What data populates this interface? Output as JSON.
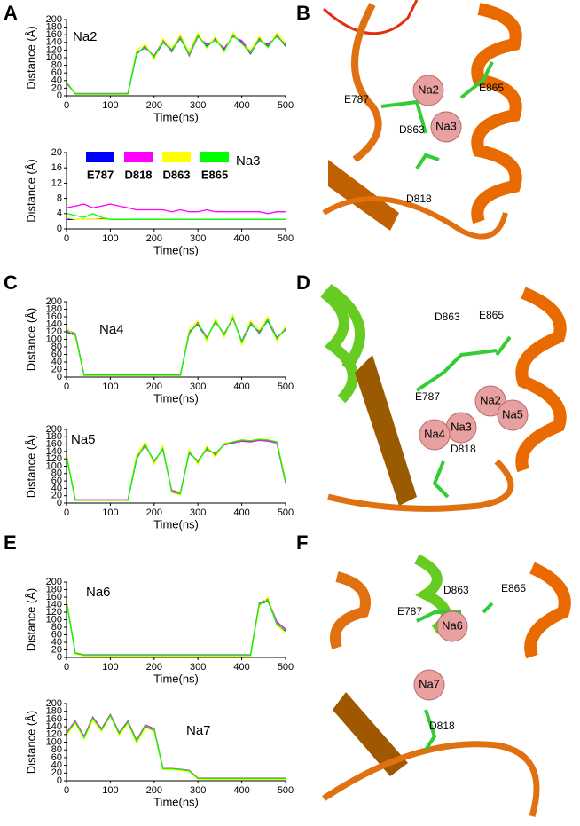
{
  "panel_labels": [
    "A",
    "B",
    "C",
    "D",
    "E",
    "F"
  ],
  "chart_data": [
    {
      "type": "line",
      "title": "Na2",
      "xlabel": "Time(ns)",
      "ylabel": "Distance (Å)",
      "x": [
        0,
        20,
        40,
        60,
        80,
        100,
        120,
        140,
        160,
        180,
        200,
        220,
        240,
        260,
        280,
        300,
        320,
        340,
        360,
        380,
        400,
        420,
        440,
        460,
        480,
        500
      ],
      "xlim": [
        0,
        500
      ],
      "xticks": [
        0,
        100,
        200,
        300,
        400,
        500
      ],
      "ylim": [
        0,
        200
      ],
      "yticks": [
        0,
        20,
        40,
        60,
        80,
        100,
        120,
        140,
        160,
        180,
        200
      ],
      "series": [
        {
          "color": "#0000ff",
          "values": [
            35,
            5,
            5,
            5,
            5,
            5,
            5,
            5,
            110,
            130,
            100,
            140,
            120,
            150,
            110,
            160,
            130,
            150,
            120,
            160,
            140,
            110,
            150,
            130,
            160,
            130
          ]
        },
        {
          "color": "#ff00ff",
          "values": [
            33,
            6,
            6,
            6,
            6,
            6,
            6,
            6,
            115,
            125,
            105,
            145,
            115,
            155,
            105,
            155,
            135,
            145,
            125,
            155,
            145,
            115,
            145,
            135,
            155,
            135
          ]
        },
        {
          "color": "#ffff00",
          "values": [
            38,
            4,
            4,
            4,
            4,
            4,
            4,
            4,
            120,
            135,
            95,
            150,
            125,
            160,
            115,
            165,
            125,
            155,
            115,
            165,
            135,
            120,
            155,
            125,
            165,
            140
          ]
        },
        {
          "color": "#00ff00",
          "values": [
            36,
            5,
            5,
            5,
            5,
            5,
            5,
            5,
            112,
            128,
            102,
            142,
            118,
            152,
            108,
            158,
            128,
            148,
            118,
            158,
            138,
            112,
            148,
            128,
            158,
            132
          ]
        }
      ]
    },
    {
      "type": "line",
      "title": "Na3",
      "xlabel": "Time(ns)",
      "ylabel": "Distance (Å)",
      "x": [
        0,
        20,
        40,
        60,
        80,
        100,
        120,
        140,
        160,
        180,
        200,
        220,
        240,
        260,
        280,
        300,
        320,
        340,
        360,
        380,
        400,
        420,
        440,
        460,
        480,
        500
      ],
      "xlim": [
        0,
        500
      ],
      "xticks": [
        0,
        100,
        200,
        300,
        400,
        500
      ],
      "ylim": [
        0,
        20
      ],
      "yticks": [
        0,
        4,
        8,
        12,
        16,
        20
      ],
      "series": [
        {
          "name": "E787",
          "color": "#0000ff",
          "values": [
            2.5,
            2.5,
            2.5,
            2.5,
            2.6,
            2.5,
            2.5,
            2.5,
            2.5,
            2.5,
            2.5,
            2.5,
            2.5,
            2.5,
            2.5,
            2.5,
            2.5,
            2.5,
            2.5,
            2.5,
            2.5,
            2.5,
            2.5,
            2.5,
            2.5,
            2.5
          ]
        },
        {
          "name": "D818",
          "color": "#ff00ff",
          "values": [
            5.5,
            6,
            6.5,
            5.5,
            6,
            6.5,
            6,
            5.5,
            5,
            5,
            5,
            5,
            4.5,
            5,
            4.5,
            4.5,
            5,
            4.5,
            4.5,
            4.5,
            4.5,
            4.5,
            4.5,
            4,
            4.5,
            4.5
          ]
        },
        {
          "name": "D863",
          "color": "#ffff00",
          "values": [
            3,
            2.5,
            2.5,
            2.5,
            2.5,
            2.5,
            2.5,
            2.5,
            2.5,
            2.5,
            2.5,
            2.5,
            2.5,
            2.5,
            2.5,
            2.5,
            2.5,
            2.5,
            2.5,
            2.5,
            2.5,
            2.5,
            2.5,
            2.5,
            2.5,
            2.5
          ]
        },
        {
          "name": "E865",
          "color": "#00ff00",
          "values": [
            4,
            3.5,
            3,
            4,
            3,
            2.5,
            2.5,
            2.5,
            2.5,
            2.5,
            2.5,
            2.5,
            2.5,
            2.5,
            2.5,
            2.5,
            2.5,
            2.5,
            2.5,
            2.5,
            2.5,
            2.5,
            2.5,
            2.5,
            2.5,
            2.5
          ]
        }
      ]
    },
    {
      "type": "line",
      "title": "Na4",
      "xlabel": "Time(ns)",
      "ylabel": "Distance (Å)",
      "x": [
        0,
        20,
        40,
        60,
        80,
        100,
        120,
        140,
        160,
        180,
        200,
        220,
        240,
        260,
        280,
        300,
        320,
        340,
        360,
        380,
        400,
        420,
        440,
        460,
        480,
        500
      ],
      "xlim": [
        0,
        500
      ],
      "xticks": [
        0,
        100,
        200,
        300,
        400,
        500
      ],
      "ylim": [
        0,
        200
      ],
      "yticks": [
        0,
        20,
        40,
        60,
        80,
        100,
        120,
        140,
        160,
        180,
        200
      ],
      "series": [
        {
          "color": "#0000ff",
          "values": [
            120,
            110,
            5,
            5,
            5,
            5,
            5,
            5,
            5,
            5,
            5,
            5,
            5,
            5,
            120,
            140,
            100,
            150,
            110,
            160,
            90,
            140,
            120,
            150,
            100,
            130
          ]
        },
        {
          "color": "#ff00ff",
          "values": [
            125,
            115,
            6,
            6,
            6,
            6,
            6,
            6,
            6,
            6,
            6,
            6,
            6,
            6,
            115,
            145,
            105,
            145,
            115,
            155,
            95,
            145,
            115,
            155,
            105,
            125
          ]
        },
        {
          "color": "#ffff00",
          "values": [
            130,
            108,
            4,
            4,
            4,
            4,
            4,
            4,
            4,
            4,
            4,
            4,
            4,
            4,
            125,
            150,
            95,
            155,
            105,
            165,
            85,
            150,
            125,
            160,
            95,
            135
          ]
        },
        {
          "color": "#00ff00",
          "values": [
            122,
            112,
            5,
            5,
            5,
            5,
            5,
            5,
            5,
            5,
            5,
            5,
            5,
            5,
            118,
            142,
            102,
            148,
            112,
            158,
            92,
            142,
            118,
            152,
            102,
            128
          ]
        }
      ]
    },
    {
      "type": "line",
      "title": "Na5",
      "xlabel": "Time(ns)",
      "ylabel": "Distance (Å)",
      "x": [
        0,
        20,
        40,
        60,
        80,
        100,
        120,
        140,
        160,
        180,
        200,
        220,
        240,
        260,
        280,
        300,
        320,
        340,
        360,
        380,
        400,
        420,
        440,
        460,
        480,
        500
      ],
      "xlim": [
        0,
        500
      ],
      "xticks": [
        0,
        100,
        200,
        300,
        400,
        500
      ],
      "ylim": [
        0,
        200
      ],
      "yticks": [
        0,
        20,
        40,
        60,
        80,
        100,
        120,
        140,
        160,
        180,
        200
      ],
      "series": [
        {
          "color": "#0000ff",
          "values": [
            130,
            8,
            8,
            8,
            8,
            8,
            8,
            8,
            120,
            160,
            110,
            150,
            30,
            25,
            140,
            110,
            150,
            130,
            160,
            165,
            170,
            168,
            172,
            170,
            165,
            60
          ]
        },
        {
          "color": "#ff00ff",
          "values": [
            132,
            9,
            9,
            9,
            9,
            9,
            9,
            9,
            125,
            155,
            115,
            145,
            35,
            28,
            135,
            115,
            145,
            135,
            158,
            163,
            168,
            166,
            170,
            168,
            163,
            55
          ]
        },
        {
          "color": "#ffff00",
          "values": [
            135,
            7,
            7,
            7,
            7,
            7,
            7,
            7,
            130,
            165,
            105,
            155,
            28,
            22,
            145,
            105,
            155,
            125,
            162,
            167,
            172,
            170,
            174,
            172,
            167,
            65
          ]
        },
        {
          "color": "#00ff00",
          "values": [
            128,
            8,
            8,
            8,
            8,
            8,
            8,
            8,
            122,
            158,
            112,
            148,
            32,
            26,
            138,
            112,
            148,
            132,
            160,
            166,
            171,
            169,
            173,
            171,
            166,
            58
          ]
        }
      ]
    },
    {
      "type": "line",
      "title": "Na6",
      "xlabel": "Time(ns)",
      "ylabel": "Distance (Å)",
      "x": [
        0,
        20,
        40,
        60,
        80,
        100,
        120,
        140,
        160,
        180,
        200,
        220,
        240,
        260,
        280,
        300,
        320,
        340,
        360,
        380,
        400,
        420,
        440,
        460,
        480,
        500
      ],
      "xlim": [
        0,
        500
      ],
      "xticks": [
        0,
        100,
        200,
        300,
        400,
        500
      ],
      "ylim": [
        0,
        200
      ],
      "yticks": [
        0,
        20,
        40,
        60,
        80,
        100,
        120,
        140,
        160,
        180,
        200
      ],
      "series": [
        {
          "color": "#0000ff",
          "values": [
            150,
            10,
            5,
            5,
            5,
            5,
            5,
            5,
            5,
            5,
            5,
            5,
            5,
            5,
            5,
            5,
            5,
            5,
            5,
            5,
            5,
            5,
            140,
            150,
            90,
            70
          ]
        },
        {
          "color": "#ff00ff",
          "values": [
            152,
            12,
            7,
            7,
            7,
            7,
            7,
            7,
            7,
            7,
            7,
            7,
            7,
            7,
            7,
            7,
            7,
            7,
            7,
            7,
            7,
            7,
            145,
            155,
            95,
            75
          ]
        },
        {
          "color": "#ffff00",
          "values": [
            155,
            9,
            4,
            4,
            4,
            4,
            4,
            4,
            4,
            4,
            4,
            4,
            4,
            4,
            4,
            4,
            4,
            4,
            4,
            4,
            4,
            4,
            135,
            160,
            85,
            65
          ]
        },
        {
          "color": "#00ff00",
          "values": [
            148,
            11,
            6,
            6,
            6,
            6,
            6,
            6,
            6,
            6,
            6,
            6,
            6,
            6,
            6,
            6,
            6,
            6,
            6,
            6,
            6,
            6,
            142,
            152,
            88,
            72
          ]
        }
      ]
    },
    {
      "type": "line",
      "title": "Na7",
      "xlabel": "Time(ns)",
      "ylabel": "Distance (Å)",
      "x": [
        0,
        20,
        40,
        60,
        80,
        100,
        120,
        140,
        160,
        180,
        200,
        220,
        240,
        260,
        280,
        300,
        320,
        340,
        360,
        380,
        400,
        420,
        440,
        460,
        480,
        500
      ],
      "xlim": [
        0,
        500
      ],
      "xticks": [
        0,
        100,
        200,
        300,
        400,
        500
      ],
      "ylim": [
        0,
        200
      ],
      "yticks": [
        0,
        20,
        40,
        60,
        80,
        100,
        120,
        140,
        160,
        180,
        200
      ],
      "series": [
        {
          "color": "#0000ff",
          "values": [
            120,
            150,
            110,
            160,
            130,
            170,
            120,
            150,
            100,
            140,
            130,
            30,
            30,
            28,
            25,
            5,
            5,
            5,
            5,
            5,
            5,
            5,
            5,
            5,
            5,
            5
          ]
        },
        {
          "color": "#ff00ff",
          "values": [
            125,
            155,
            115,
            165,
            135,
            172,
            125,
            155,
            105,
            145,
            135,
            32,
            32,
            30,
            27,
            7,
            7,
            7,
            7,
            7,
            7,
            7,
            7,
            7,
            7,
            7
          ]
        },
        {
          "color": "#ffff00",
          "values": [
            118,
            148,
            108,
            158,
            128,
            168,
            118,
            148,
            98,
            138,
            128,
            29,
            29,
            27,
            24,
            4,
            4,
            4,
            4,
            4,
            4,
            4,
            4,
            4,
            4,
            4
          ]
        },
        {
          "color": "#00ff00",
          "values": [
            122,
            152,
            112,
            162,
            132,
            169,
            122,
            152,
            102,
            142,
            132,
            31,
            31,
            29,
            26,
            6,
            6,
            6,
            6,
            6,
            6,
            6,
            6,
            6,
            6,
            6
          ]
        }
      ]
    }
  ],
  "structures": [
    {
      "ions": [
        "Na2",
        "Na3"
      ],
      "residues": [
        "E787",
        "E865",
        "D863",
        "D818"
      ]
    },
    {
      "ions": [
        "Na2",
        "Na5",
        "Na3",
        "Na4"
      ],
      "residues": [
        "D863",
        "E865",
        "E787",
        "D818"
      ]
    },
    {
      "ions": [
        "Na6",
        "Na7"
      ],
      "residues": [
        "D863",
        "E865",
        "E787",
        "D818"
      ]
    }
  ]
}
